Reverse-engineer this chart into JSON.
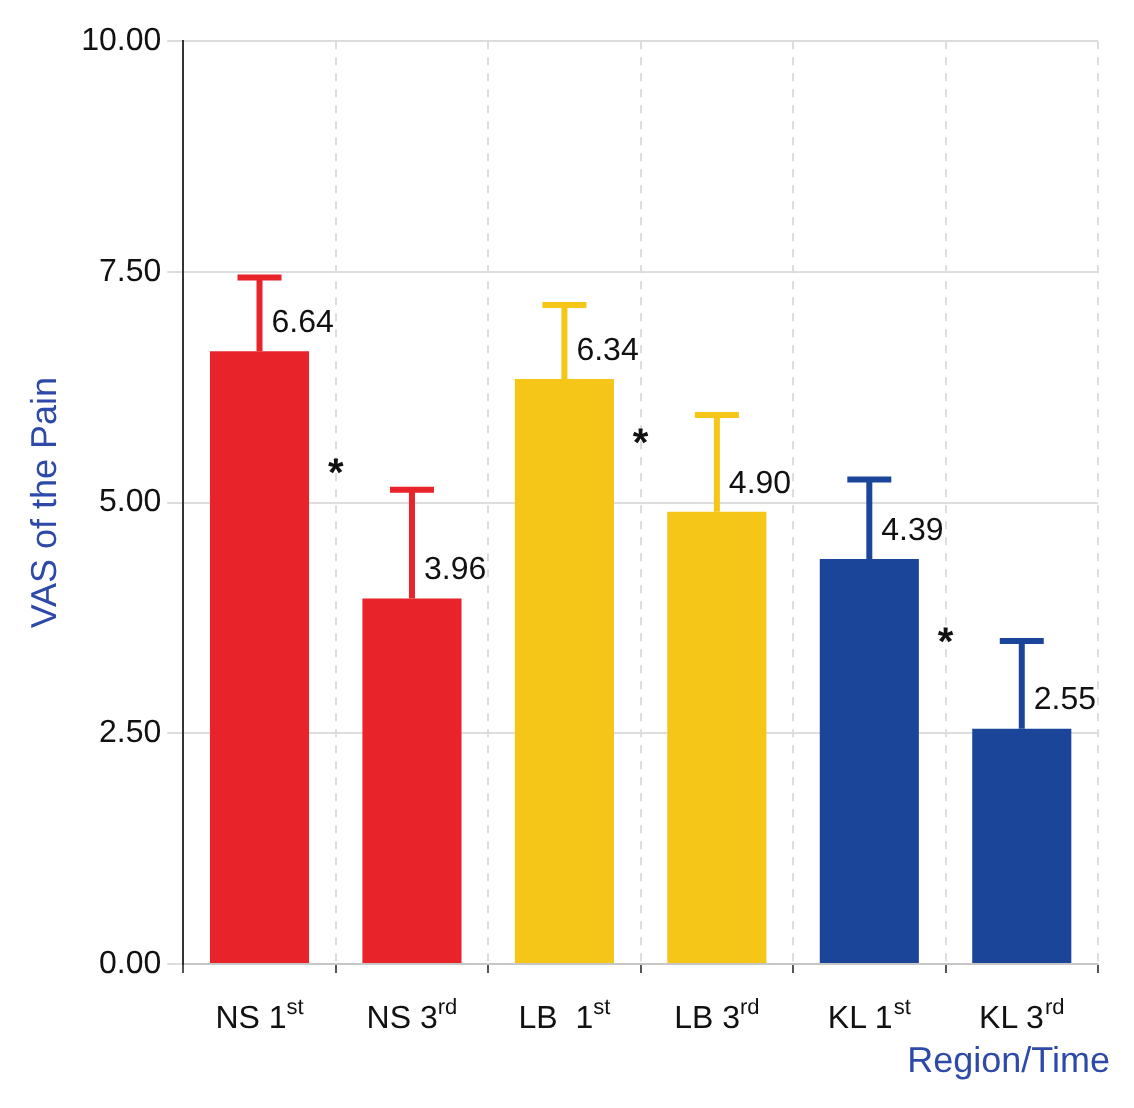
{
  "chart_data": {
    "type": "bar",
    "xlabel": "Region/Time",
    "ylabel": "VAS of the Pain",
    "categories": [
      "NS 1$^{st}$",
      "NS 3$^{rd}$",
      "LB  1$^{st}$",
      "LB 3$^{rd}$",
      "KL 1$^{st}$",
      "KL 3$^{rd}$"
    ],
    "values": [
      6.64,
      3.96,
      6.34,
      4.9,
      4.39,
      2.55
    ],
    "colors": [
      "#e8232a",
      "#e8232a",
      "#f5c518",
      "#f5c518",
      "#1a4599",
      "#1a4599"
    ],
    "errors": [
      [
        6.64,
        7.44
      ],
      [
        3.96,
        5.14
      ],
      [
        6.34,
        7.14
      ],
      [
        4.9,
        5.95
      ],
      [
        4.39,
        5.25
      ],
      [
        2.55,
        3.5
      ]
    ],
    "value_labels": [
      "6.64",
      "3.96",
      "6.34",
      "4.90",
      "4.39",
      "2.55"
    ],
    "annotations": [
      "*",
      "*",
      "*"
    ],
    "ylim": [
      0,
      10
    ],
    "yticks": [
      {
        "value": 0,
        "label": "0.00"
      },
      {
        "value": 2.5,
        "label": "2.50"
      },
      {
        "value": 5,
        "label": "5.00"
      },
      {
        "value": 7.5,
        "label": "7.50"
      },
      {
        "value": 10,
        "label": "10.00"
      }
    ],
    "grid": true
  }
}
